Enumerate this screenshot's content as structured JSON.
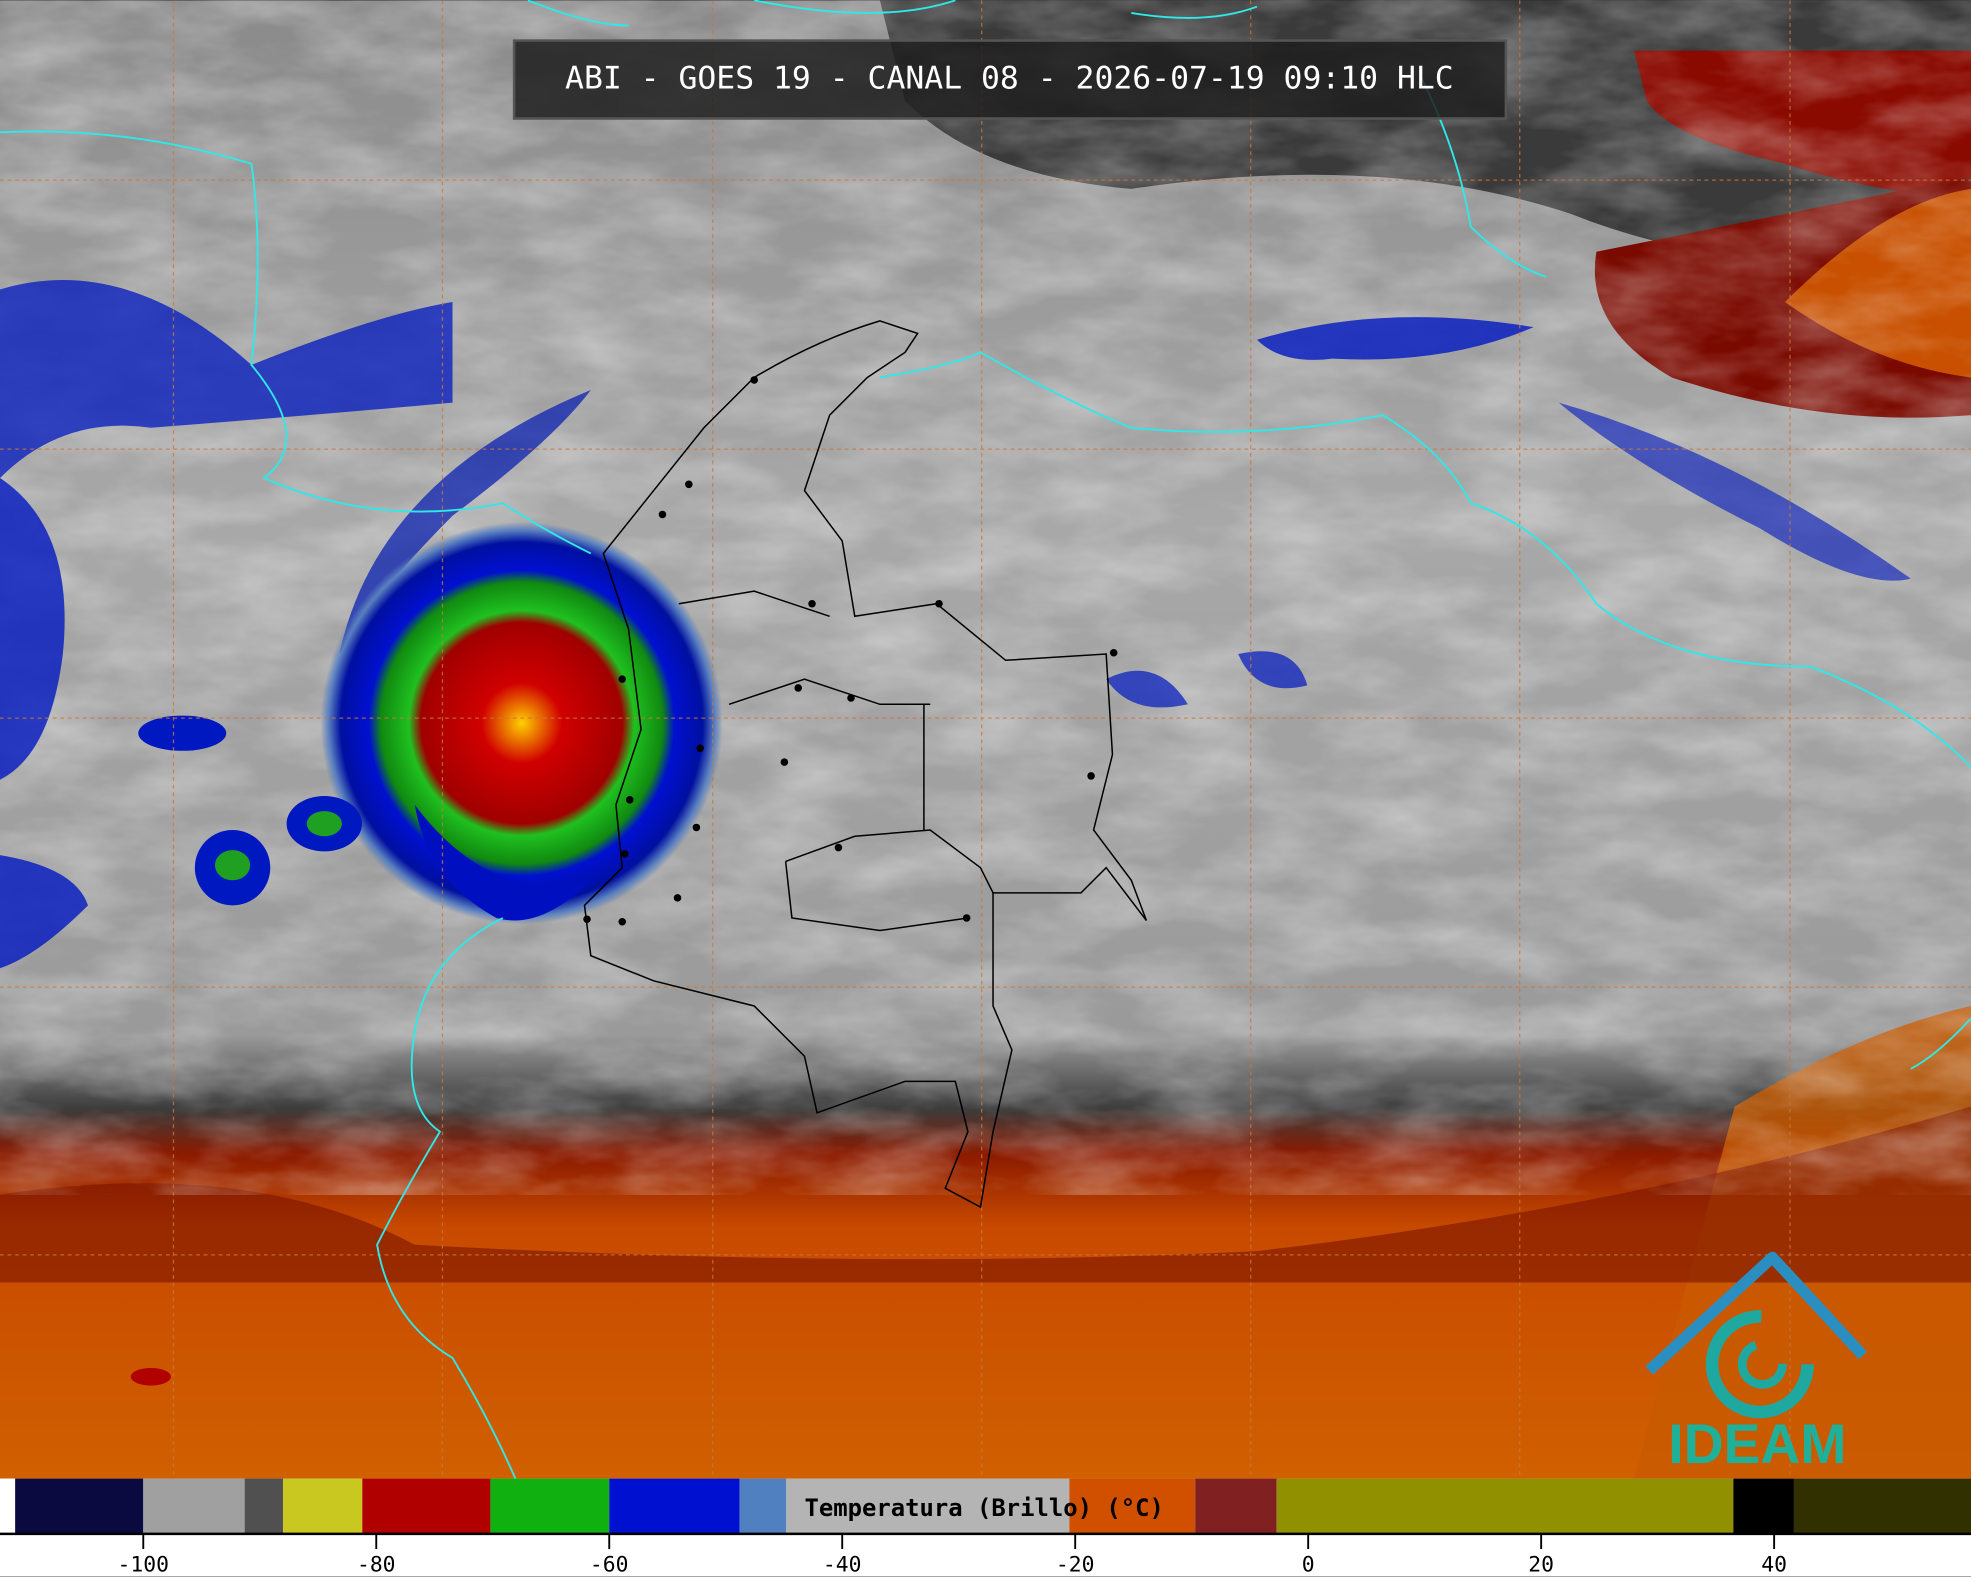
{
  "header": {
    "title": "ABI - GOES 19 - CANAL 08 - 2026-07-19 09:10 HLC"
  },
  "logo": {
    "text": "IDEAM"
  },
  "chart_data": {
    "type": "colorbar",
    "label": "Temperatura (Brillo) (°C)",
    "xlim": [
      -112.3,
      56.9
    ],
    "xticks": [
      -100,
      -80,
      -60,
      -40,
      -20,
      0,
      20,
      40
    ],
    "bands": [
      {
        "from": -112.3,
        "to": -111,
        "color": "#ffffff"
      },
      {
        "from": -111,
        "to": -100,
        "color": "#0a0a40"
      },
      {
        "from": -100,
        "to": -91.3,
        "color": "#a0a0a0"
      },
      {
        "from": -91.3,
        "to": -88,
        "color": "#505050"
      },
      {
        "from": -88,
        "to": -81.2,
        "color": "#c8c820"
      },
      {
        "from": -81.2,
        "to": -70.2,
        "color": "#b00000"
      },
      {
        "from": -70.2,
        "to": -60,
        "color": "#10b010"
      },
      {
        "from": -60,
        "to": -48.8,
        "color": "#0010d0"
      },
      {
        "from": -48.8,
        "to": -44.8,
        "color": "#5080c0"
      },
      {
        "from": -44.8,
        "to": -20.5,
        "color": "#b4b4b4"
      },
      {
        "from": -20.5,
        "to": -9.7,
        "color": "#d05000"
      },
      {
        "from": -9.7,
        "to": -2.7,
        "color": "#802020"
      },
      {
        "from": -2.7,
        "to": 36.5,
        "color": "#909000"
      },
      {
        "from": 36.5,
        "to": 41.7,
        "color": "#000000"
      },
      {
        "from": 41.7,
        "to": 56.9,
        "color": "#303000"
      }
    ]
  }
}
